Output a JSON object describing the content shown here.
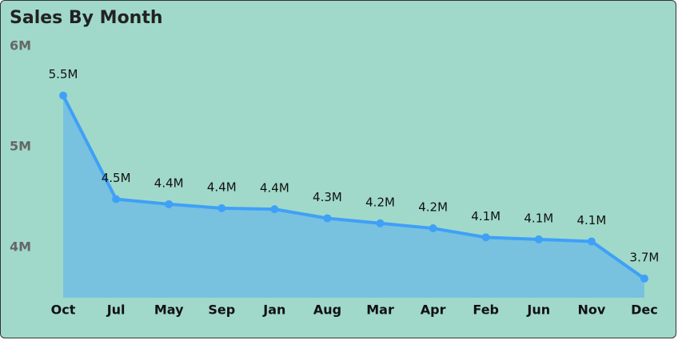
{
  "chart_data": {
    "type": "area",
    "title": "Sales By Month",
    "categories": [
      "Oct",
      "Jul",
      "May",
      "Sep",
      "Jan",
      "Aug",
      "Mar",
      "Apr",
      "Feb",
      "Jun",
      "Nov",
      "Dec"
    ],
    "values": [
      5.51,
      4.48,
      4.43,
      4.39,
      4.38,
      4.29,
      4.24,
      4.19,
      4.1,
      4.08,
      4.06,
      3.69
    ],
    "value_labels": [
      "5.5M",
      "4.5M",
      "4.4M",
      "4.4M",
      "4.4M",
      "4.3M",
      "4.2M",
      "4.2M",
      "4.1M",
      "4.1M",
      "4.1M",
      "3.7M"
    ],
    "color": "#3fa0f7",
    "area_color": "#78c2df",
    "ylim": [
      3.5,
      6
    ],
    "yticks": [
      {
        "value": 4,
        "label": "4M"
      },
      {
        "value": 5,
        "label": "5M"
      },
      {
        "value": 6,
        "label": "6M"
      }
    ],
    "grid": false
  }
}
